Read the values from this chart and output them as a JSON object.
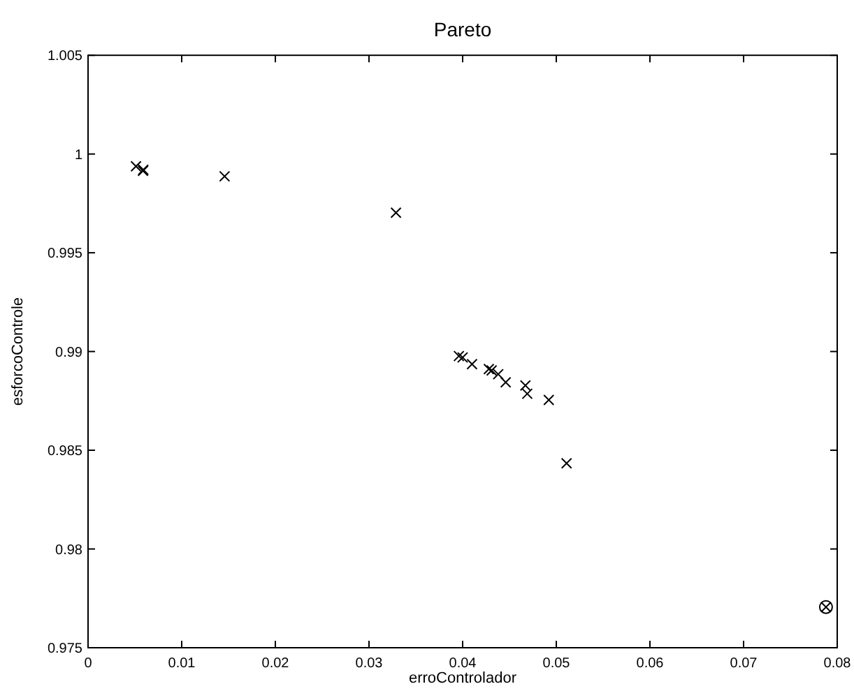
{
  "chart_data": {
    "type": "scatter",
    "title": "Pareto",
    "xlabel": "erroControlador",
    "ylabel": "esforcoControle",
    "xlim": [
      0,
      0.08
    ],
    "ylim": [
      0.975,
      1.005
    ],
    "xticks": [
      0,
      0.01,
      0.02,
      0.03,
      0.04,
      0.05,
      0.06,
      0.07,
      0.08
    ],
    "yticks": [
      0.975,
      0.98,
      0.985,
      0.99,
      0.995,
      1,
      1.005
    ],
    "grid": false,
    "series": [
      {
        "color": "#000000",
        "marker": "cross",
        "x": [
          0.00512,
          0.00587,
          0.0059,
          0.01458,
          0.03288,
          0.0396,
          0.04,
          0.041,
          0.0428,
          0.0431,
          0.0438,
          0.0446,
          0.0467,
          0.0469,
          0.0492,
          0.0511
        ],
        "values": [
          0.99938,
          0.99915,
          0.9992,
          0.99887,
          0.99703,
          0.98977,
          0.9897,
          0.98936,
          0.98911,
          0.98904,
          0.98885,
          0.98844,
          0.98828,
          0.98786,
          0.98755,
          0.98434
        ]
      },
      {
        "color": "#000000",
        "marker": "circle",
        "x": [
          0.0788
        ],
        "values": [
          0.97706
        ]
      }
    ]
  }
}
